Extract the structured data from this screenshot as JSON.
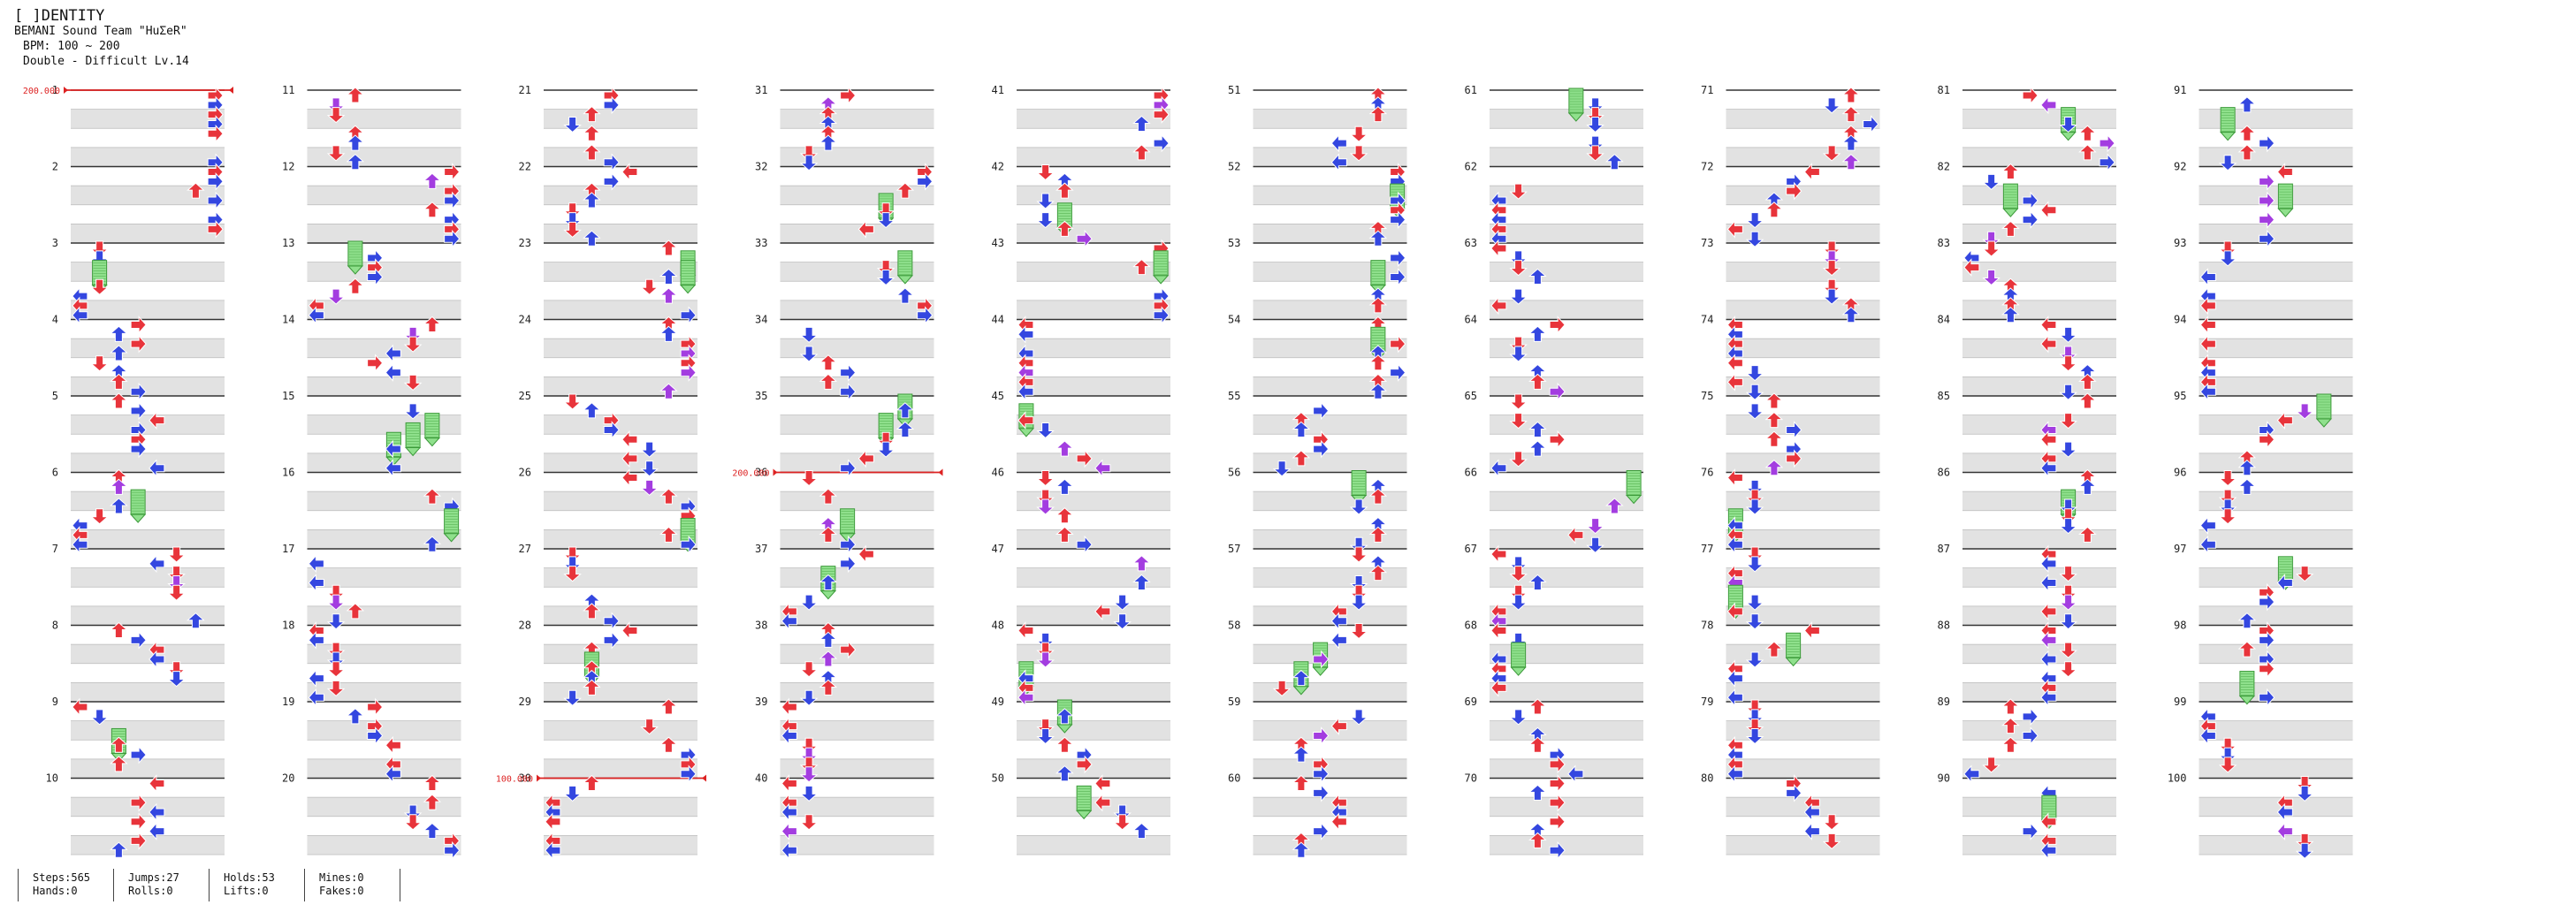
{
  "header": {
    "title": "[ ]DENTITY",
    "artist": "BEMANI Sound Team \"HuΣeR\"",
    "bpm": "BPM: 100 ~ 200",
    "chart": "Double - Difficult  Lv.14"
  },
  "measure_labels": [
    "1",
    "2",
    "3",
    "4",
    "5",
    "6",
    "7",
    "8",
    "9",
    "10",
    "11",
    "12",
    "13",
    "14",
    "15",
    "16",
    "17",
    "18",
    "19",
    "20",
    "21",
    "22",
    "23",
    "24",
    "25",
    "26",
    "27",
    "28",
    "29",
    "30",
    "31",
    "32",
    "33",
    "34",
    "35",
    "36",
    "37",
    "38",
    "39",
    "40",
    "41",
    "42",
    "43",
    "44",
    "45",
    "46",
    "47",
    "48",
    "49",
    "50",
    "51",
    "52",
    "53",
    "54",
    "55",
    "56",
    "57",
    "58",
    "59",
    "60",
    "61",
    "62",
    "63",
    "64",
    "65",
    "66",
    "67",
    "68",
    "69",
    "70",
    "71",
    "72",
    "73",
    "74",
    "75",
    "76",
    "77",
    "78",
    "79",
    "80",
    "81",
    "82",
    "83",
    "84",
    "85",
    "86",
    "87",
    "88",
    "89",
    "90",
    "91",
    "92",
    "93",
    "94",
    "95",
    "96",
    "97",
    "98",
    "99",
    "100"
  ],
  "bpm_changes": [
    {
      "measure": 1,
      "label": "200.000"
    },
    {
      "measure": 30,
      "label": "100.000"
    },
    {
      "measure": 36,
      "label": "200.000"
    }
  ],
  "stats": {
    "steps": "Steps:565",
    "hands": "Hands:0",
    "jumps": "Jumps:27",
    "rolls": "Rolls:0",
    "holds": "Holds:53",
    "lifts": "Lifts:0",
    "mines": "Mines:0",
    "fakes": "Fakes:0"
  },
  "colors": {
    "quarter_note": "#e8343b",
    "eighth_note": "#3447e0",
    "sixteenth_note": "#a33de0",
    "twelfth_note": "#f2d31a",
    "hold_body": "#8fe08c",
    "bpm_marker": "#dd2222",
    "stripe": "#e2e2e2"
  },
  "arrow_icons": [
    "left-arrow-icon",
    "down-arrow-icon",
    "up-arrow-icon",
    "right-arrow-icon"
  ]
}
